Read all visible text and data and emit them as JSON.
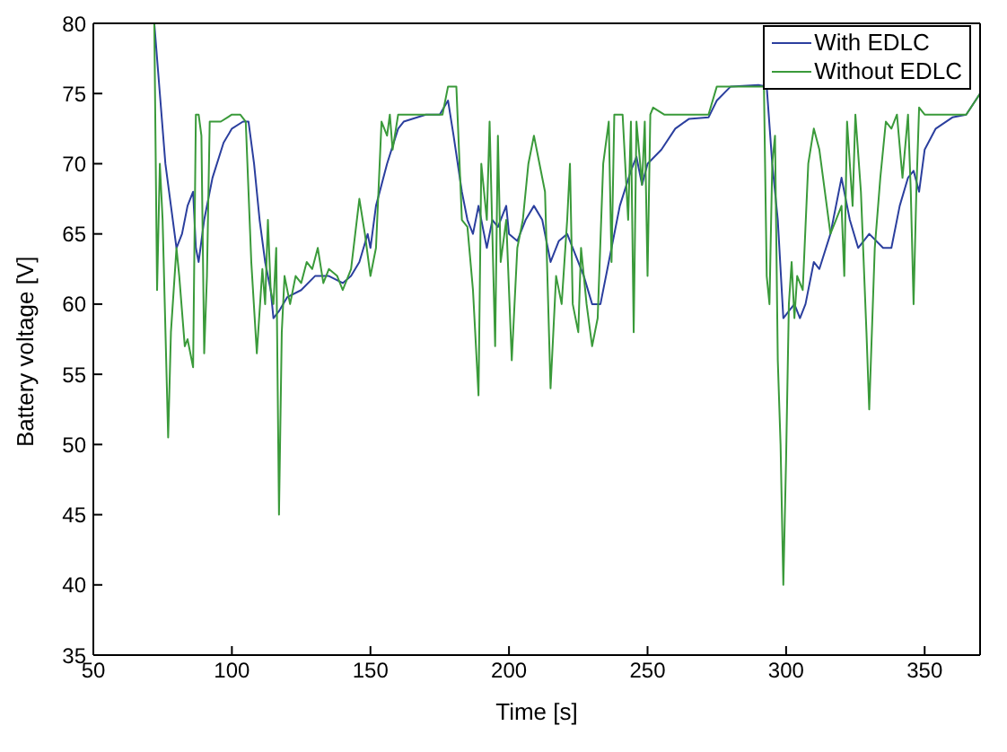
{
  "chart_data": {
    "type": "line",
    "xlabel": "Time [s]",
    "ylabel": "Battery voltage [V]",
    "xlim": [
      50,
      370
    ],
    "ylim": [
      35,
      80
    ],
    "xticks": [
      50,
      100,
      150,
      200,
      250,
      300,
      350
    ],
    "yticks": [
      35,
      40,
      45,
      50,
      55,
      60,
      65,
      70,
      75,
      80
    ],
    "legend": "top right",
    "marker": "none",
    "line_style": "solid",
    "series": [
      {
        "name": "With EDLC",
        "color": "#2b3f9e",
        "x": [
          72,
          74,
          76,
          78,
          80,
          82,
          84,
          86,
          87,
          88,
          90,
          93,
          97,
          100,
          104,
          106,
          108,
          110,
          112,
          114,
          115,
          117,
          120,
          125,
          130,
          135,
          140,
          143,
          146,
          149,
          150,
          152,
          156,
          160,
          162,
          170,
          175,
          178,
          180,
          183,
          185,
          187,
          189,
          190,
          192,
          194,
          196,
          199,
          200,
          203,
          206,
          209,
          212,
          215,
          218,
          221,
          224,
          227,
          230,
          233,
          236,
          240,
          244,
          246,
          248,
          250,
          255,
          260,
          265,
          272,
          275,
          280,
          290,
          293,
          295,
          297,
          299,
          301,
          303,
          305,
          307,
          310,
          312,
          316,
          320,
          323,
          326,
          330,
          335,
          338,
          341,
          344,
          346,
          348,
          350,
          354,
          360,
          365,
          370
        ],
        "values": [
          80,
          75,
          70,
          67,
          64,
          65,
          67,
          68,
          64,
          63,
          66,
          69,
          71.5,
          72.5,
          73,
          73,
          70,
          66,
          63,
          61,
          59,
          59.5,
          60.5,
          61,
          62,
          62,
          61.5,
          62,
          63,
          65,
          64,
          67,
          70,
          72.5,
          73,
          73.5,
          73.5,
          74.5,
          72,
          68,
          66,
          65,
          67,
          66,
          64,
          66,
          65.5,
          67,
          65,
          64.5,
          66,
          67,
          66,
          63,
          64.5,
          65,
          63.5,
          62,
          60,
          60,
          63,
          67,
          69.5,
          70.5,
          68.5,
          70,
          71,
          72.5,
          73.2,
          73.3,
          74.5,
          75.5,
          75.6,
          75.5,
          70,
          66,
          59,
          59.5,
          60,
          59,
          60,
          63,
          62.5,
          65,
          69,
          66,
          64,
          65,
          64,
          64,
          67,
          69,
          69.5,
          68,
          71,
          72.5,
          73.3,
          73.5,
          75
        ]
      },
      {
        "name": "Without EDLC",
        "color": "#3a9a3a",
        "x": [
          72,
          73,
          74,
          75,
          77,
          78,
          80,
          81,
          83,
          84,
          86,
          87,
          88,
          89,
          90,
          91,
          92,
          96,
          100,
          103,
          105,
          107,
          109,
          111,
          112,
          113,
          114,
          115,
          116,
          117,
          118,
          119,
          121,
          123,
          125,
          127,
          129,
          131,
          133,
          135,
          138,
          140,
          143,
          146,
          148,
          150,
          152,
          154,
          156,
          157,
          158,
          160,
          163,
          170,
          176,
          178,
          181,
          183,
          185,
          187,
          189,
          190,
          192,
          193,
          195,
          196,
          197,
          199,
          201,
          203,
          205,
          207,
          209,
          211,
          213,
          215,
          217,
          219,
          221,
          222,
          223,
          225,
          226,
          228,
          230,
          232,
          234,
          236,
          237,
          238,
          241,
          243,
          244,
          245,
          246,
          248,
          249,
          250,
          251,
          252,
          256,
          272,
          275,
          292,
          293,
          294,
          295,
          296,
          297,
          298,
          299,
          300,
          301,
          302,
          303,
          304,
          306,
          308,
          310,
          312,
          314,
          316,
          318,
          320,
          321,
          322,
          324,
          325,
          327,
          329,
          330,
          332,
          334,
          336,
          338,
          340,
          342,
          344,
          345,
          346,
          347,
          348,
          350,
          360,
          365,
          370
        ],
        "values": [
          80,
          61,
          70,
          66,
          50.5,
          58,
          64,
          62,
          57,
          57.5,
          55.5,
          73.5,
          73.5,
          72,
          56.5,
          62,
          73,
          73,
          73.5,
          73.5,
          73,
          63,
          56.5,
          62.5,
          60,
          66,
          61,
          60,
          64,
          45,
          58,
          62,
          60,
          62,
          61.5,
          63,
          62.5,
          64,
          61.5,
          62.5,
          62,
          61,
          62.5,
          67.5,
          65,
          62,
          64,
          73,
          72,
          73.5,
          71,
          73.5,
          73.5,
          73.5,
          73.5,
          75.5,
          75.5,
          66,
          65.5,
          61,
          53.5,
          70,
          66,
          73,
          57,
          72,
          63,
          66,
          56,
          64,
          66,
          70,
          72,
          70,
          68,
          54,
          62,
          60,
          66,
          70,
          60,
          58,
          64,
          60,
          57,
          59,
          70,
          73,
          63,
          73.5,
          73.5,
          66,
          73,
          58,
          73,
          68.5,
          73,
          62,
          73.5,
          74,
          73.5,
          73.5,
          75.5,
          75.5,
          62,
          60,
          70,
          72,
          56,
          50,
          40,
          49,
          60,
          63,
          59,
          62,
          61,
          70,
          72.5,
          71,
          68,
          65,
          66,
          67,
          62,
          73,
          67,
          73.5,
          68,
          58,
          52.5,
          64,
          69,
          73,
          72.5,
          73.5,
          69,
          73.5,
          68,
          60,
          68,
          74,
          73.5,
          73.5,
          73.5,
          75
        ]
      }
    ]
  }
}
